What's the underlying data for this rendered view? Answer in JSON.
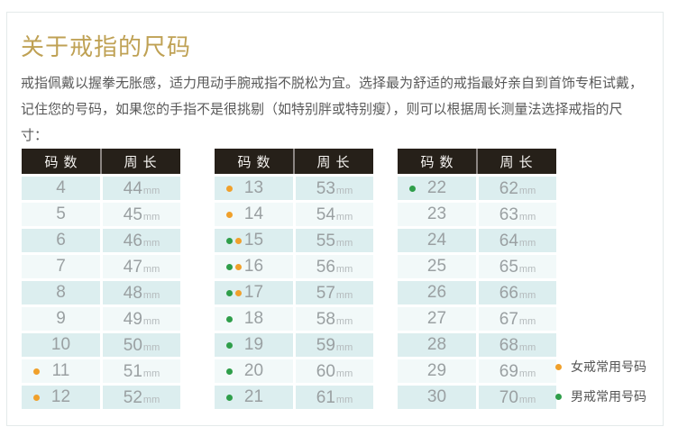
{
  "card": {
    "title": "关于戒指的尺码",
    "description": "戒指佩戴以握拳无胀感，适力甩动手腕戒指不脱松为宜。选择最为舒适的戒指最好亲自到首饰专柜试戴，记住您的号码，如果您的手指不是很挑剔（如特别胖或特别瘦），则可以根据周长测量法选择戒指的尺寸："
  },
  "table_header": {
    "size_label": "码数",
    "circumference_label": "周长"
  },
  "unit": "mm",
  "tables": [
    {
      "rows": [
        {
          "size": "4",
          "circumference": "44",
          "dots": []
        },
        {
          "size": "5",
          "circumference": "45",
          "dots": []
        },
        {
          "size": "6",
          "circumference": "46",
          "dots": []
        },
        {
          "size": "7",
          "circumference": "47",
          "dots": []
        },
        {
          "size": "8",
          "circumference": "48",
          "dots": []
        },
        {
          "size": "9",
          "circumference": "49",
          "dots": []
        },
        {
          "size": "10",
          "circumference": "50",
          "dots": []
        },
        {
          "size": "11",
          "circumference": "51",
          "dots": [
            "women"
          ]
        },
        {
          "size": "12",
          "circumference": "52",
          "dots": [
            "women"
          ]
        }
      ]
    },
    {
      "rows": [
        {
          "size": "13",
          "circumference": "53",
          "dots": [
            "women"
          ]
        },
        {
          "size": "14",
          "circumference": "54",
          "dots": [
            "women"
          ]
        },
        {
          "size": "15",
          "circumference": "55",
          "dots": [
            "men",
            "women"
          ]
        },
        {
          "size": "16",
          "circumference": "56",
          "dots": [
            "men",
            "women"
          ]
        },
        {
          "size": "17",
          "circumference": "57",
          "dots": [
            "men",
            "women"
          ]
        },
        {
          "size": "18",
          "circumference": "58",
          "dots": [
            "men"
          ]
        },
        {
          "size": "19",
          "circumference": "59",
          "dots": [
            "men"
          ]
        },
        {
          "size": "20",
          "circumference": "60",
          "dots": [
            "men"
          ]
        },
        {
          "size": "21",
          "circumference": "61",
          "dots": [
            "men"
          ]
        }
      ]
    },
    {
      "rows": [
        {
          "size": "22",
          "circumference": "62",
          "dots": [
            "men"
          ]
        },
        {
          "size": "23",
          "circumference": "63",
          "dots": []
        },
        {
          "size": "24",
          "circumference": "64",
          "dots": []
        },
        {
          "size": "25",
          "circumference": "65",
          "dots": []
        },
        {
          "size": "26",
          "circumference": "66",
          "dots": []
        },
        {
          "size": "27",
          "circumference": "67",
          "dots": []
        },
        {
          "size": "28",
          "circumference": "68",
          "dots": []
        },
        {
          "size": "29",
          "circumference": "69",
          "dots": []
        },
        {
          "size": "30",
          "circumference": "70",
          "dots": []
        }
      ]
    }
  ],
  "legend": [
    {
      "key": "women",
      "label": "女戒常用号码"
    },
    {
      "key": "men",
      "label": "男戒常用号码"
    }
  ],
  "colors": {
    "title": "#bfa154",
    "body_text": "#595959",
    "header_bg": "#262019",
    "header_text": "#f6f4f1",
    "header_divider": "#8b8582",
    "row_alt_a": "#dceeef",
    "row_alt_b": "#f2f9f9",
    "number_text": "#9aa0a2",
    "unit_text": "#b4babc",
    "women_dot": "#f0a02b",
    "men_dot": "#2f9e4a",
    "legend_text": "#555555",
    "card_border": "#e4eaea"
  }
}
